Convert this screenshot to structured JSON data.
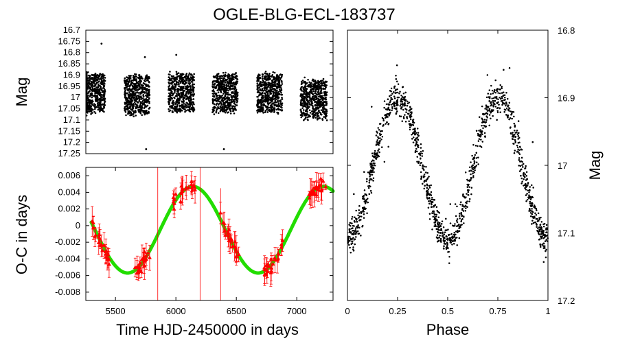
{
  "title": "OGLE-BLG-ECL-183737",
  "colors": {
    "points": "#000000",
    "oc_points": "#ff0000",
    "fit": "#22dd00"
  },
  "chart_data": [
    {
      "id": "light-curve",
      "type": "scatter",
      "ylabel": "Mag",
      "xlim": [
        5300,
        7350
      ],
      "ylim": [
        17.25,
        16.7
      ],
      "y_ticks": [
        "16.7",
        "16.75",
        "16.8",
        "16.85",
        "16.9",
        "16.95",
        "17",
        "17.05",
        "17.1",
        "17.15",
        "17.2",
        "17.25"
      ],
      "seasons": [
        {
          "start": 5255,
          "end": 5460,
          "mag_mean": 16.98
        },
        {
          "start": 5620,
          "end": 5830,
          "mag_mean": 16.99
        },
        {
          "start": 5985,
          "end": 6200,
          "mag_mean": 16.98
        },
        {
          "start": 6350,
          "end": 6560,
          "mag_mean": 16.98
        },
        {
          "start": 6720,
          "end": 6930,
          "mag_mean": 16.98
        },
        {
          "start": 7080,
          "end": 7300,
          "mag_mean": 17.01
        }
      ],
      "outliers": [
        [
          5430,
          16.76
        ],
        [
          5790,
          16.82
        ],
        [
          6050,
          16.81
        ],
        [
          5800,
          17.23
        ],
        [
          6445,
          17.23
        ]
      ]
    },
    {
      "id": "oc-diagram",
      "type": "scatter",
      "ylabel": "O-C in days",
      "xlabel": "Time HJD-2450000 in days",
      "xlim": [
        5255,
        7300
      ],
      "ylim": [
        -0.009,
        0.007
      ],
      "x_ticks": [
        "5500",
        "6000",
        "6500",
        "7000"
      ],
      "y_ticks": [
        "0.006",
        "0.004",
        "0.002",
        "0",
        "-0.002",
        "-0.004",
        "-0.006",
        "-0.008"
      ],
      "fit_model": {
        "mean": -0.0005,
        "amplitude": 0.0052,
        "period_days": 1080,
        "min_at": 5600
      }
    },
    {
      "id": "phased-curve",
      "type": "scatter",
      "ylabel": "Mag",
      "xlabel": "Phase",
      "xlim": [
        0,
        1
      ],
      "ylim": [
        17.2,
        16.8
      ],
      "x_ticks": [
        "0",
        "0.25",
        "0.5",
        "0.75",
        "1"
      ],
      "y_ticks": [
        "16.8",
        "16.9",
        "17",
        "17.1",
        "17.2"
      ],
      "model": {
        "mean_mag": 17.005,
        "amplitude": 0.105,
        "phase_max": 0.25
      }
    }
  ]
}
